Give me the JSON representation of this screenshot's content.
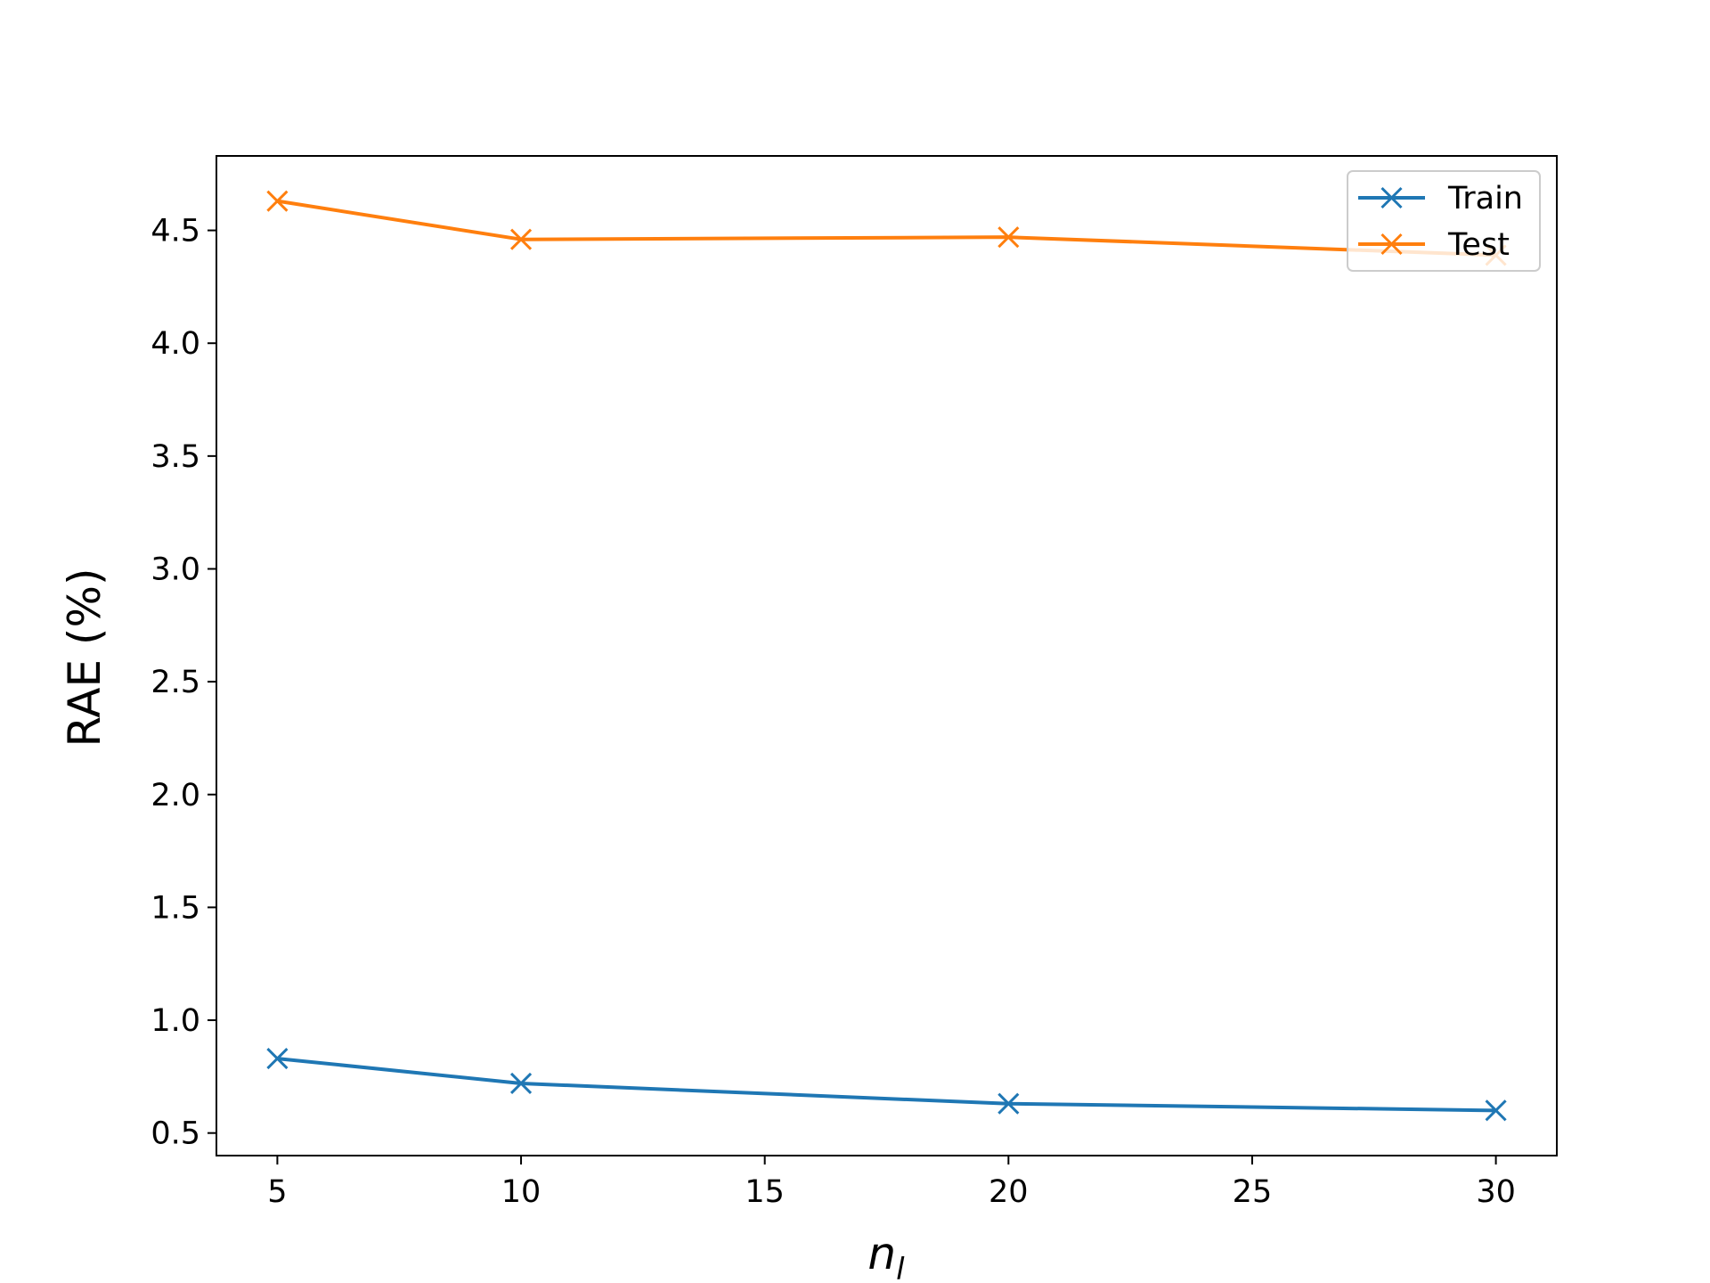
{
  "chart_data": {
    "type": "line",
    "xlabel": "n",
    "xlabel_sub": "l",
    "ylabel": "RAE (%)",
    "xlim": [
      3.75,
      31.25
    ],
    "ylim": [
      0.4,
      4.83
    ],
    "xticks": [
      5,
      10,
      15,
      20,
      25,
      30
    ],
    "yticks": [
      0.5,
      1.0,
      1.5,
      2.0,
      2.5,
      3.0,
      3.5,
      4.0,
      4.5
    ],
    "xtick_labels": [
      "5",
      "10",
      "15",
      "20",
      "25",
      "30"
    ],
    "ytick_labels": [
      "0.5",
      "1.0",
      "1.5",
      "2.0",
      "2.5",
      "3.0",
      "3.5",
      "4.0",
      "4.5"
    ],
    "grid": false,
    "legend_position": "upper right",
    "marker": "x",
    "series": [
      {
        "name": "Train",
        "color": "#1f77b4",
        "x": [
          5,
          10,
          20,
          30
        ],
        "y": [
          0.83,
          0.72,
          0.63,
          0.6
        ]
      },
      {
        "name": "Test",
        "color": "#ff7f0e",
        "x": [
          5,
          10,
          20,
          30
        ],
        "y": [
          4.63,
          4.46,
          4.47,
          4.39
        ]
      }
    ]
  }
}
